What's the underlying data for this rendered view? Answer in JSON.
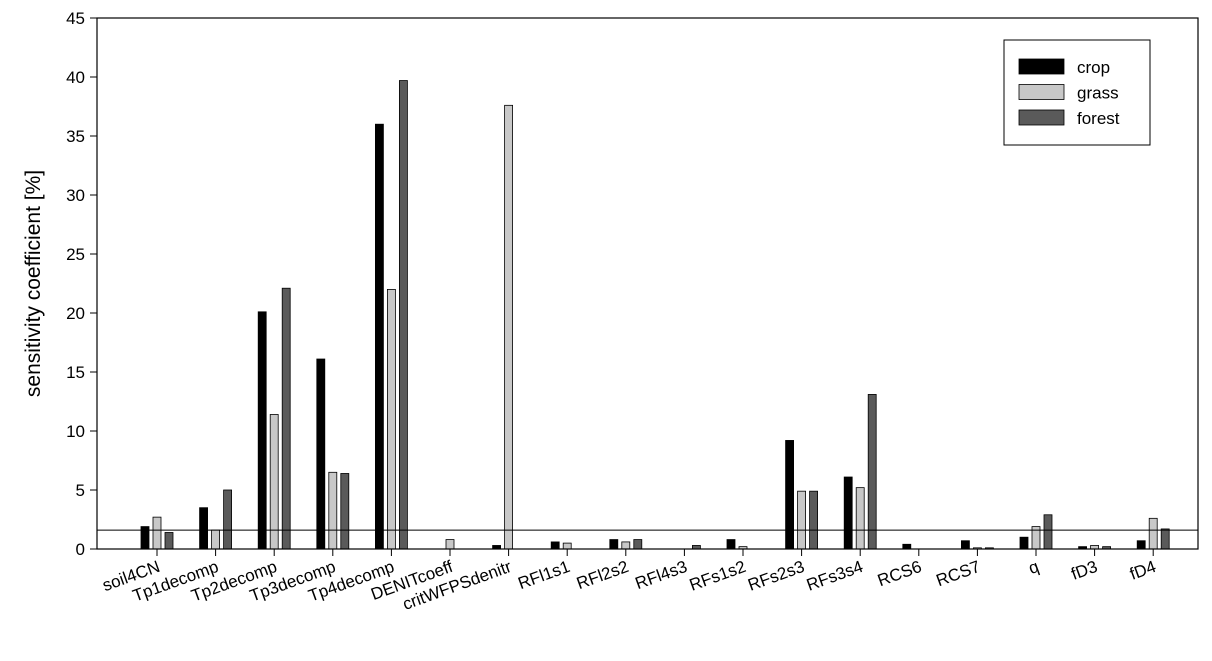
{
  "chart_data": {
    "type": "bar",
    "title": "",
    "xlabel": "",
    "ylabel": "sensitivity coefficient [%]",
    "ylim": [
      0,
      45
    ],
    "yticks": [
      0,
      5,
      10,
      15,
      20,
      25,
      30,
      35,
      40,
      45
    ],
    "grid": false,
    "legend_position": "top-right",
    "reference_line": 1.6,
    "categories": [
      "soil4CN",
      "Tp1decomp",
      "Tp2decomp",
      "Tp3decomp",
      "Tp4decomp",
      "DENITcoeff",
      "critWFPSdenitr",
      "RFl1s1",
      "RFl2s2",
      "RFl4s3",
      "RFs1s2",
      "RFs2s3",
      "RFs3s4",
      "RCS6",
      "RCS7",
      "q",
      "fD3",
      "fD4"
    ],
    "series": [
      {
        "name": "crop",
        "color": "#000000",
        "values": [
          1.9,
          3.5,
          20.1,
          16.1,
          36.0,
          0.0,
          0.3,
          0.6,
          0.8,
          0.0,
          0.8,
          9.2,
          6.1,
          0.4,
          0.7,
          1.0,
          0.2,
          0.7
        ]
      },
      {
        "name": "grass",
        "color": "#c8c8c8",
        "values": [
          2.7,
          1.6,
          11.4,
          6.5,
          22.0,
          0.8,
          37.6,
          0.5,
          0.6,
          0.0,
          0.2,
          4.9,
          5.2,
          0.0,
          0.1,
          1.9,
          0.3,
          2.6
        ]
      },
      {
        "name": "forest",
        "color": "#5a5a5a",
        "values": [
          1.4,
          5.0,
          22.1,
          6.4,
          39.7,
          0.0,
          0.0,
          0.0,
          0.8,
          0.3,
          0.0,
          4.9,
          13.1,
          0.0,
          0.1,
          2.9,
          0.2,
          1.7
        ]
      }
    ]
  }
}
